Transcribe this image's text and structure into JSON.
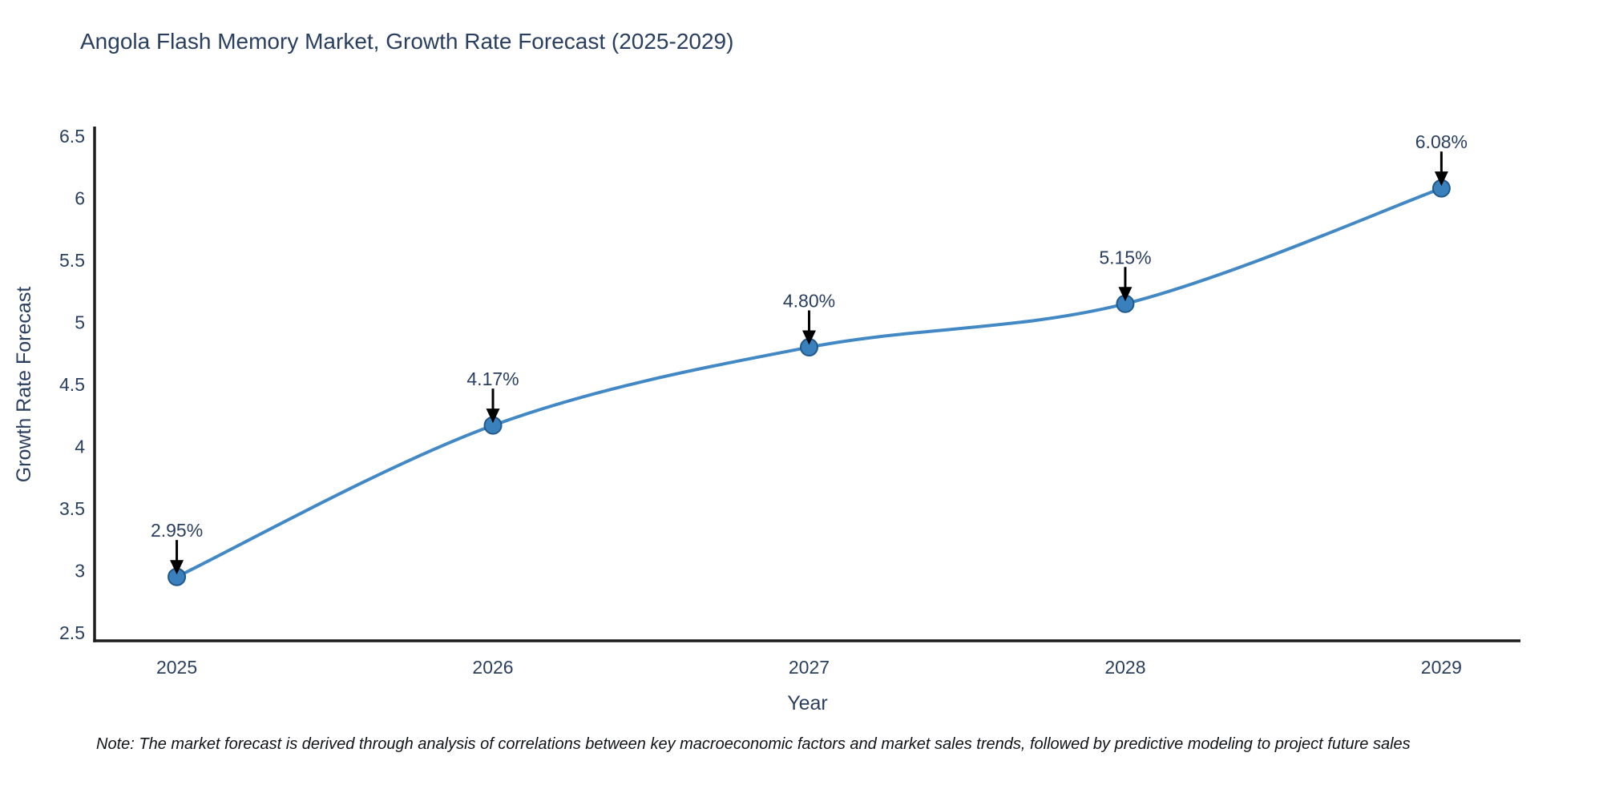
{
  "chart_data": {
    "type": "line",
    "title": "Angola Flash Memory Market, Growth Rate Forecast (2025-2029)",
    "x": [
      2025,
      2026,
      2027,
      2028,
      2029
    ],
    "xticks": [
      "2025",
      "2026",
      "2027",
      "2028",
      "2029"
    ],
    "series": [
      {
        "name": "Growth Rate Forecast",
        "values": [
          2.95,
          4.17,
          4.8,
          5.15,
          6.08
        ],
        "point_labels": [
          "2.95%",
          "4.17%",
          "4.80%",
          "5.15%",
          "6.08%"
        ]
      }
    ],
    "xlabel": "Year",
    "ylabel": "Growth Rate Forecast",
    "yticks": [
      2.5,
      3,
      3.5,
      4,
      4.5,
      5,
      5.5,
      6,
      6.5
    ],
    "ylim": [
      2.435,
      6.565
    ],
    "xlim": [
      2024.74,
      2029.25
    ],
    "line_shape": "spline",
    "grid": false,
    "legend_position": "none",
    "annotation_style": "black-down-arrows",
    "colors": {
      "line": "#4288c5",
      "marker_fill": "#3a80bd",
      "marker_edge": "#22598c",
      "axis_line": "#1c1c1c",
      "tick_text": "#2a3f5f",
      "title_text": "#2a3f5f",
      "label_text": "#2a3f5f",
      "arrow": "#000000",
      "background": "#ffffff"
    }
  },
  "footnote": "Note: The market forecast is derived through analysis of correlations between key macroeconomic factors and market sales trends, followed by predictive modeling to project future sales"
}
